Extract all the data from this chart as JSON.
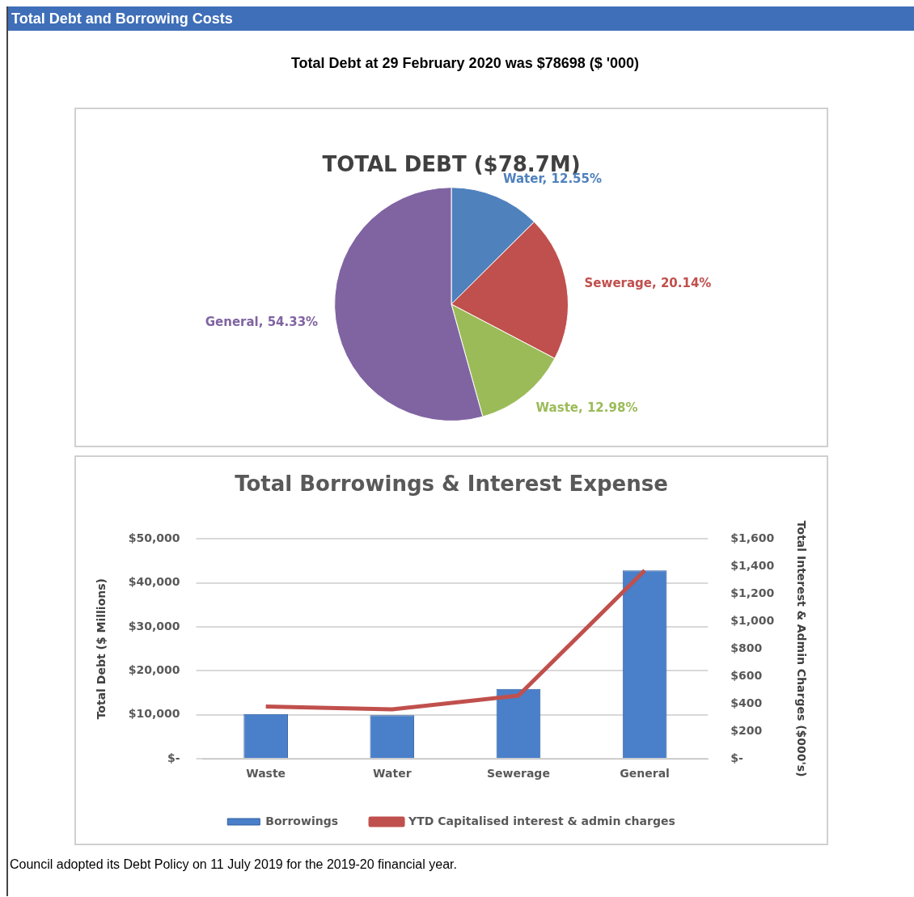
{
  "chart_data": [
    {
      "type": "pie",
      "title": "TOTAL DEBT ($78.7M)",
      "annotations": [
        "Total Debt and Borrowing Costs",
        "Total Debt at 29 February 2020 was $78698 ($ '000)"
      ],
      "categories": [
        "Water",
        "Sewerage",
        "Waste",
        "General"
      ],
      "values": [
        12.55,
        20.14,
        12.98,
        54.33
      ],
      "colors": [
        "#4f81bd",
        "#c0504d",
        "#9bbb59",
        "#8064a2"
      ],
      "value_labels": [
        "12.55%",
        "20.14%",
        "12.98%",
        "54.33%"
      ],
      "legend": false
    },
    {
      "type": "bar",
      "title": "Total Borrowings & Interest Expense",
      "ylabel": "Total Debt ($ Millions)",
      "y2label": "Total Interest & Admin Charges ($000's)",
      "annotations": [
        "Council adopted its Debt Policy on 11 July 2019 for the 2019-20 financial year."
      ],
      "categories": [
        "Waste",
        "Water",
        "Sewerage",
        "General"
      ],
      "series": [
        {
          "name": "Borrowings",
          "type": "bar",
          "color": "#4a7fc9",
          "values": [
            10200,
            9900,
            15900,
            42800
          ]
        },
        {
          "name": "YTD Capitalised interest & admin charges",
          "type": "line",
          "axis": "y2",
          "color": "#c0504d",
          "values": [
            380,
            360,
            460,
            1370
          ]
        }
      ],
      "ylim": [
        0,
        50000
      ],
      "yticks": [
        {
          "value": 0,
          "label": "$-"
        },
        {
          "value": 10000,
          "label": "$10,000"
        },
        {
          "value": 20000,
          "label": "$20,000"
        },
        {
          "value": 30000,
          "label": "$30,000"
        },
        {
          "value": 40000,
          "label": "$40,000"
        },
        {
          "value": 50000,
          "label": "$50,000"
        }
      ],
      "y2lim": [
        0,
        1600
      ],
      "y2ticks": [
        {
          "value": 0,
          "label": "$-"
        },
        {
          "value": 200,
          "label": "$200"
        },
        {
          "value": 400,
          "label": "$400"
        },
        {
          "value": 600,
          "label": "$600"
        },
        {
          "value": 800,
          "label": "$800"
        },
        {
          "value": 1000,
          "label": "$1,000"
        },
        {
          "value": 1200,
          "label": "$1,200"
        },
        {
          "value": 1400,
          "label": "$1,400"
        },
        {
          "value": 1600,
          "label": "$1,600"
        }
      ],
      "grid": "y",
      "legend": "bottom",
      "marker": "none"
    }
  ]
}
